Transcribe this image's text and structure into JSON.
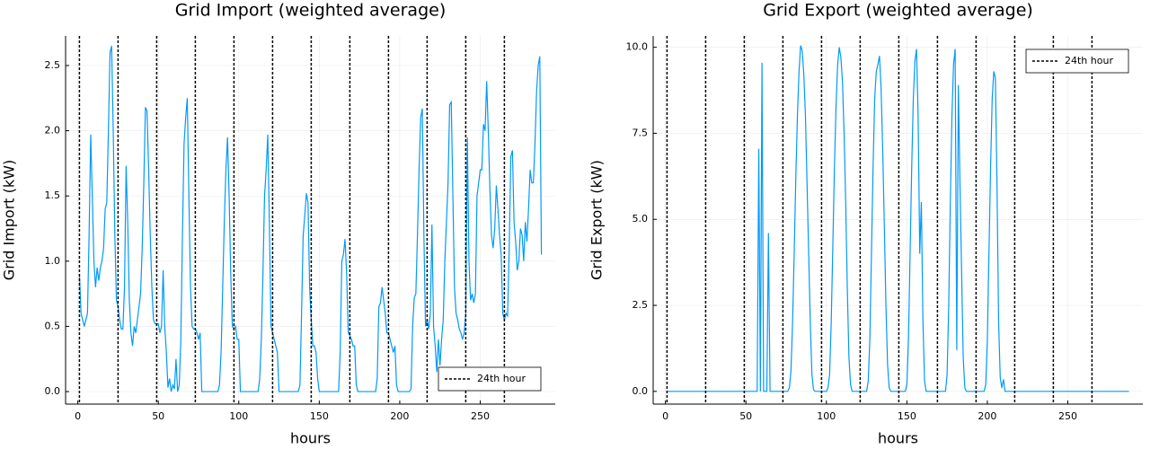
{
  "chart_data": [
    {
      "type": "line",
      "title": "Grid Import (weighted average)",
      "xlabel": "hours",
      "ylabel": "Grid Import (kW)",
      "x": [
        1,
        2,
        3,
        4,
        5,
        6,
        7,
        8,
        9,
        10,
        11,
        12,
        13,
        14,
        15,
        16,
        17,
        18,
        19,
        20,
        21,
        22,
        23,
        24,
        25,
        26,
        27,
        28,
        29,
        30,
        31,
        32,
        33,
        34,
        35,
        36,
        37,
        38,
        39,
        40,
        41,
        42,
        43,
        44,
        45,
        46,
        47,
        48,
        49,
        50,
        51,
        52,
        53,
        54,
        55,
        56,
        57,
        58,
        59,
        60,
        61,
        62,
        63,
        64,
        65,
        66,
        67,
        68,
        69,
        70,
        71,
        72,
        73,
        74,
        75,
        76,
        77,
        78,
        79,
        80,
        81,
        82,
        83,
        84,
        85,
        86,
        87,
        88,
        89,
        90,
        91,
        92,
        93,
        94,
        95,
        96,
        97,
        98,
        99,
        100,
        101,
        102,
        103,
        104,
        105,
        106,
        107,
        108,
        109,
        110,
        111,
        112,
        113,
        114,
        115,
        116,
        117,
        118,
        119,
        120,
        121,
        122,
        123,
        124,
        125,
        126,
        127,
        128,
        129,
        130,
        131,
        132,
        133,
        134,
        135,
        136,
        137,
        138,
        139,
        140,
        141,
        142,
        143,
        144,
        145,
        146,
        147,
        148,
        149,
        150,
        151,
        152,
        153,
        154,
        155,
        156,
        157,
        158,
        159,
        160,
        161,
        162,
        163,
        164,
        165,
        166,
        167,
        168,
        169,
        170,
        171,
        172,
        173,
        174,
        175,
        176,
        177,
        178,
        179,
        180,
        181,
        182,
        183,
        184,
        185,
        186,
        187,
        188,
        189,
        190,
        191,
        192,
        193,
        194,
        195,
        196,
        197,
        198,
        199,
        200,
        201,
        202,
        203,
        204,
        205,
        206,
        207,
        208,
        209,
        210,
        211,
        212,
        213,
        214,
        215,
        216,
        217,
        218,
        219,
        220,
        221,
        222,
        223,
        224,
        225,
        226,
        227,
        228,
        229,
        230,
        231,
        232,
        233,
        234,
        235,
        236,
        237,
        238,
        239,
        240,
        241,
        242,
        243,
        244,
        245,
        246,
        247,
        248,
        249,
        250,
        251,
        252,
        253,
        254,
        255,
        256,
        257,
        258,
        259,
        260,
        261,
        262,
        263,
        264,
        265,
        266,
        267,
        268,
        269,
        270,
        271,
        272,
        273,
        274,
        275,
        276,
        277,
        278,
        279,
        280,
        281,
        282,
        283,
        284,
        285,
        286,
        287,
        288
      ],
      "series": [
        {
          "color": "#009af9",
          "values": [
            0.9,
            0.6,
            0.55,
            0.5,
            0.55,
            0.6,
            1.2,
            1.97,
            1.5,
            1.0,
            0.8,
            0.95,
            0.85,
            0.95,
            1.0,
            1.1,
            1.4,
            1.45,
            2.0,
            2.6,
            2.65,
            2.0,
            1.2,
            0.7,
            0.65,
            0.55,
            0.48,
            0.48,
            0.8,
            1.73,
            1.3,
            0.7,
            0.45,
            0.35,
            0.5,
            0.45,
            0.55,
            0.65,
            0.75,
            1.1,
            1.6,
            2.18,
            2.15,
            1.7,
            1.2,
            0.8,
            0.55,
            0.52,
            0.52,
            0.52,
            0.45,
            0.5,
            0.93,
            0.5,
            0.3,
            0.03,
            0.1,
            0,
            0.05,
            0.02,
            0.25,
            0,
            0.05,
            0.4,
            1.2,
            1.9,
            2.1,
            2.25,
            1.5,
            0.8,
            0.5,
            0.48,
            0.48,
            0.45,
            0.4,
            0.45,
            0,
            0,
            0,
            0,
            0,
            0,
            0,
            0,
            0,
            0,
            0,
            0.05,
            0.3,
            0.8,
            1.3,
            1.7,
            1.95,
            1.5,
            0.9,
            0.5,
            0.48,
            0.5,
            0.4,
            0.4,
            0,
            0,
            0,
            0,
            0,
            0,
            0,
            0,
            0,
            0,
            0,
            0,
            0.1,
            0.4,
            0.9,
            1.5,
            1.7,
            1.97,
            1.3,
            0.5,
            0.45,
            0.4,
            0.35,
            0.3,
            0,
            0,
            0,
            0,
            0,
            0,
            0,
            0,
            0,
            0,
            0,
            0,
            0,
            0.05,
            0.6,
            1.2,
            1.35,
            1.52,
            1.45,
            0.8,
            0.55,
            0.35,
            0.35,
            0.3,
            0.1,
            0,
            0,
            0,
            0,
            0,
            0,
            0,
            0,
            0,
            0,
            0,
            0,
            0,
            0.3,
            1.0,
            1.05,
            1.17,
            0.9,
            0.45,
            0.43,
            0.4,
            0.35,
            0.35,
            0.05,
            0,
            0,
            0,
            0,
            0,
            0,
            0,
            0,
            0,
            0,
            0,
            0,
            0.1,
            0.65,
            0.68,
            0.8,
            0.7,
            0.6,
            0.45,
            0.45,
            0.4,
            0.35,
            0.3,
            0.35,
            0.05,
            0,
            0,
            0,
            0,
            0,
            0,
            0,
            0,
            0.02,
            0.5,
            0.72,
            0.75,
            1.2,
            1.7,
            2.1,
            2.17,
            1.2,
            0.5,
            0.55,
            0.48,
            0.6,
            1.28,
            0.5,
            0.35,
            0.15,
            0.4,
            0.2,
            0.4,
            0.55,
            1.0,
            1.3,
            1.6,
            2.2,
            2.22,
            1.5,
            0.8,
            0.6,
            0.55,
            0.48,
            0.45,
            0.4,
            0.45,
            0.6,
            1.95,
            1.0,
            0.7,
            0.75,
            0.68,
            0.75,
            1.5,
            1.6,
            1.7,
            1.7,
            2.05,
            2.0,
            2.38,
            2.0,
            1.55,
            1.2,
            1.1,
            1.25,
            1.58,
            1.4,
            1.2,
            1.05,
            0.6,
            0.55,
            0.6,
            0.58,
            1.1,
            1.8,
            1.85,
            1.3,
            1.15,
            0.93,
            1.0,
            1.25,
            1.2,
            1.0,
            1.3,
            1.15,
            1.4,
            1.7,
            1.6,
            1.6,
            1.9,
            2.3,
            2.5,
            2.57,
            1.05
          ]
        }
      ],
      "vlines": {
        "name": "24th hour",
        "color": "#000000",
        "values": [
          1,
          25,
          49,
          73,
          97,
          121,
          145,
          169,
          193,
          217,
          241,
          265
        ]
      },
      "xlim": [
        -7.6,
        296.6
      ],
      "xticks": [
        0,
        50,
        100,
        150,
        200,
        250
      ],
      "ylim": [
        -0.096,
        2.727
      ],
      "yticks": [
        {
          "value": 0,
          "label": "0.0"
        },
        {
          "value": 0.5,
          "label": "0.5"
        },
        {
          "value": 1,
          "label": "1.0"
        },
        {
          "value": 1.5,
          "label": "1.5"
        },
        {
          "value": 2,
          "label": "2.0"
        },
        {
          "value": 2.5,
          "label": "2.5"
        }
      ],
      "grid": true,
      "legend": "bottom-right"
    },
    {
      "type": "line",
      "title": "Grid Export (weighted average)",
      "xlabel": "hours",
      "ylabel": "Grid Export (kW)",
      "x": [
        1,
        2,
        3,
        4,
        5,
        6,
        7,
        8,
        9,
        10,
        11,
        12,
        13,
        14,
        15,
        16,
        17,
        18,
        19,
        20,
        21,
        22,
        23,
        24,
        25,
        26,
        27,
        28,
        29,
        30,
        31,
        32,
        33,
        34,
        35,
        36,
        37,
        38,
        39,
        40,
        41,
        42,
        43,
        44,
        45,
        46,
        47,
        48,
        49,
        50,
        51,
        52,
        53,
        54,
        55,
        56,
        57,
        58,
        59,
        60,
        61,
        62,
        63,
        64,
        65,
        66,
        67,
        68,
        69,
        70,
        71,
        72,
        73,
        74,
        75,
        76,
        77,
        78,
        79,
        80,
        81,
        82,
        83,
        84,
        85,
        86,
        87,
        88,
        89,
        90,
        91,
        92,
        93,
        94,
        95,
        96,
        97,
        98,
        99,
        100,
        101,
        102,
        103,
        104,
        105,
        106,
        107,
        108,
        109,
        110,
        111,
        112,
        113,
        114,
        115,
        116,
        117,
        118,
        119,
        120,
        121,
        122,
        123,
        124,
        125,
        126,
        127,
        128,
        129,
        130,
        131,
        132,
        133,
        134,
        135,
        136,
        137,
        138,
        139,
        140,
        141,
        142,
        143,
        144,
        145,
        146,
        147,
        148,
        149,
        150,
        151,
        152,
        153,
        154,
        155,
        156,
        157,
        158,
        159,
        160,
        161,
        162,
        163,
        164,
        165,
        166,
        167,
        168,
        169,
        170,
        171,
        172,
        173,
        174,
        175,
        176,
        177,
        178,
        179,
        180,
        181,
        182,
        183,
        184,
        185,
        186,
        187,
        188,
        189,
        190,
        191,
        192,
        193,
        194,
        195,
        196,
        197,
        198,
        199,
        200,
        201,
        202,
        203,
        204,
        205,
        206,
        207,
        208,
        209,
        210,
        211,
        212,
        213,
        214,
        215,
        216,
        217,
        218,
        219,
        220,
        221,
        222,
        223,
        224,
        225,
        226,
        227,
        228,
        229,
        230,
        231,
        232,
        233,
        234,
        235,
        236,
        237,
        238,
        239,
        240,
        241,
        242,
        243,
        244,
        245,
        246,
        247,
        248,
        249,
        250,
        251,
        252,
        253,
        254,
        255,
        256,
        257,
        258,
        259,
        260,
        261,
        262,
        263,
        264,
        265,
        266,
        267,
        268,
        269,
        270,
        271,
        272,
        273,
        274,
        275,
        276,
        277,
        278,
        279,
        280,
        281,
        282,
        283,
        284,
        285,
        286,
        287,
        288
      ],
      "series": [
        {
          "color": "#009af9",
          "values": [
            0,
            0,
            0,
            0,
            0,
            0,
            0,
            0,
            0,
            0,
            0,
            0,
            0,
            0,
            0,
            0,
            0,
            0,
            0,
            0,
            0,
            0,
            0,
            0,
            0,
            0,
            0,
            0,
            0,
            0,
            0,
            0,
            0,
            0,
            0,
            0,
            0,
            0,
            0,
            0,
            0,
            0,
            0,
            0,
            0,
            0,
            0,
            0,
            0,
            0,
            0,
            0,
            0,
            0,
            0,
            0,
            0,
            7.05,
            0,
            9.55,
            0,
            0,
            0,
            4.6,
            0,
            0,
            0,
            0,
            0,
            0,
            0,
            0,
            0,
            0,
            0,
            0,
            0.1,
            0.6,
            2.0,
            4.0,
            6.2,
            8.0,
            9.3,
            10.05,
            9.9,
            9.2,
            8.0,
            6.0,
            4.0,
            2.0,
            0.5,
            0.05,
            0,
            0,
            0,
            0,
            0,
            0,
            0,
            0,
            0.1,
            0.5,
            2.0,
            4.2,
            6.5,
            8.3,
            9.5,
            10.0,
            9.7,
            9.0,
            7.5,
            5.5,
            3.0,
            1.0,
            0.2,
            0,
            0,
            0,
            0,
            0,
            0,
            0,
            0,
            0,
            0,
            0.3,
            1.5,
            4.0,
            6.5,
            8.5,
            9.3,
            9.5,
            9.75,
            8.8,
            7.0,
            4.8,
            2.5,
            0.8,
            0.1,
            0,
            0,
            0,
            0,
            0,
            0,
            0,
            0,
            0,
            0,
            0.2,
            1.5,
            4.0,
            6.5,
            8.5,
            9.6,
            9.95,
            8.0,
            4.0,
            5.5,
            2.0,
            0.3,
            0,
            0,
            0,
            0,
            0,
            0,
            0,
            0,
            0,
            0,
            0,
            0,
            0,
            0.5,
            2.5,
            5.5,
            8.0,
            9.5,
            9.95,
            1.2,
            8.9,
            6.0,
            3.5,
            1.0,
            0.1,
            0,
            0,
            0,
            0,
            0,
            0,
            0,
            0,
            0,
            0,
            0,
            0,
            0.2,
            1.5,
            4.0,
            6.5,
            8.5,
            9.3,
            9.1,
            6.0,
            2.0,
            0.4,
            0.1,
            0.35,
            0,
            0,
            0,
            0,
            0,
            0,
            0,
            0,
            0,
            0,
            0,
            0,
            0,
            0,
            0,
            0,
            0,
            0,
            0,
            0,
            0,
            0,
            0,
            0,
            0,
            0,
            0,
            0,
            0,
            0,
            0,
            0,
            0,
            0,
            0,
            0,
            0,
            0,
            0,
            0,
            0,
            0,
            0,
            0,
            0,
            0,
            0,
            0,
            0,
            0,
            0,
            0,
            0,
            0,
            0,
            0,
            0,
            0,
            0,
            0,
            0,
            0,
            0,
            0,
            0,
            0,
            0,
            0,
            0,
            0,
            0,
            0,
            0,
            0,
            0,
            0,
            0,
            0
          ]
        }
      ],
      "vlines": {
        "name": "24th hour",
        "color": "#000000",
        "values": [
          1,
          25,
          49,
          73,
          97,
          121,
          145,
          169,
          193,
          217,
          241,
          265
        ]
      },
      "xlim": [
        -7.6,
        296.6
      ],
      "xticks": [
        0,
        50,
        100,
        150,
        200,
        250
      ],
      "ylim": [
        -0.37,
        10.33
      ],
      "yticks": [
        {
          "value": 0,
          "label": "0.0"
        },
        {
          "value": 2.5,
          "label": "2.5"
        },
        {
          "value": 5,
          "label": "5.0"
        },
        {
          "value": 7.5,
          "label": "7.5"
        },
        {
          "value": 10,
          "label": "10.0"
        }
      ],
      "grid": true,
      "legend": "top-right"
    }
  ]
}
